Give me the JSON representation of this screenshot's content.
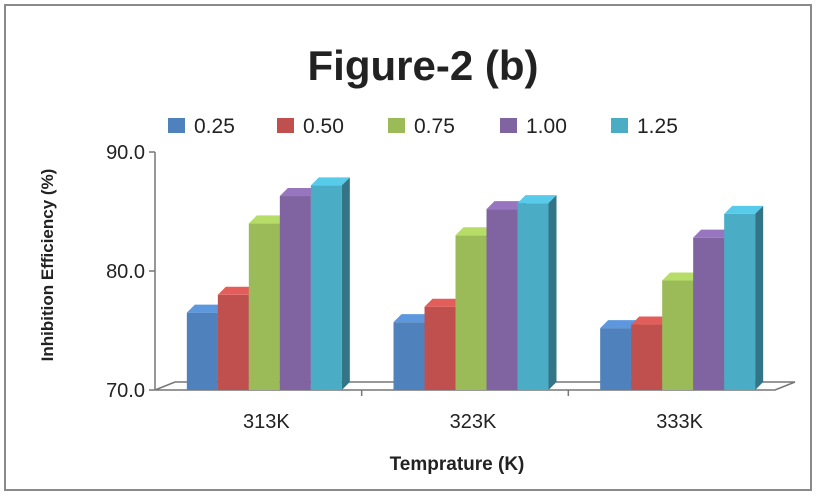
{
  "chart_data": {
    "type": "bar",
    "title": "Figure-2 (b)",
    "xlabel": "Temprature (K)",
    "ylabel": "Inhibition Efficiency (%)",
    "categories": [
      "313K",
      "323K",
      "333K"
    ],
    "ylim": [
      70,
      90
    ],
    "yticks": [
      "70.0",
      "80.0",
      "90.0"
    ],
    "legend_position": "top",
    "grid": false,
    "series": [
      {
        "name": "0.25",
        "color": "#4f81bd",
        "values": [
          76.5,
          75.7,
          75.2
        ]
      },
      {
        "name": "0.50",
        "color": "#c0504d",
        "values": [
          78.0,
          77.0,
          75.5
        ]
      },
      {
        "name": "0.75",
        "color": "#9bbb59",
        "values": [
          84.0,
          83.0,
          79.2
        ]
      },
      {
        "name": "1.00",
        "color": "#8064a2",
        "values": [
          86.3,
          85.2,
          82.8
        ]
      },
      {
        "name": "1.25",
        "color": "#4bacc6",
        "values": [
          87.2,
          85.7,
          84.8
        ]
      }
    ]
  }
}
